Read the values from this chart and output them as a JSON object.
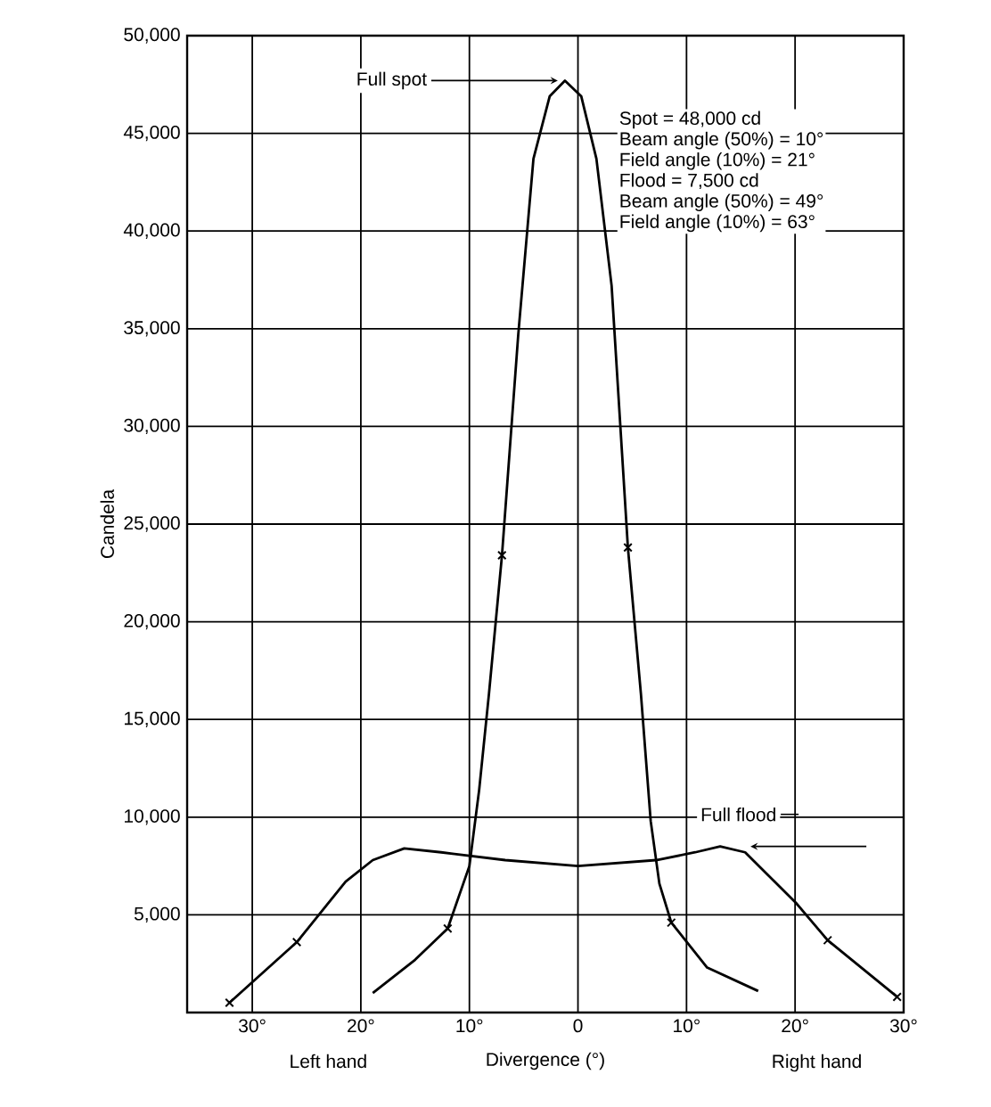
{
  "chart_data": {
    "type": "line",
    "xlabel": "Divergence (°)",
    "ylabel": "Candela",
    "xlim": [
      -36,
      30
    ],
    "ylim": [
      0,
      50000
    ],
    "xticks": [
      {
        "value": -30,
        "label": "30°"
      },
      {
        "value": -20,
        "label": "20°"
      },
      {
        "value": -10,
        "label": "10°"
      },
      0,
      {
        "value": 10,
        "label": "10°"
      },
      {
        "value": 20,
        "label": "20°"
      },
      {
        "value": 30,
        "label": "30°"
      }
    ],
    "yticks": [
      {
        "value": 5000,
        "label": "5,000"
      },
      {
        "value": 10000,
        "label": "10,000"
      },
      {
        "value": 15000,
        "label": "15,000"
      },
      {
        "value": 20000,
        "label": "20,000"
      },
      {
        "value": 25000,
        "label": "25,000"
      },
      {
        "value": 30000,
        "label": "30,000"
      },
      {
        "value": 35000,
        "label": "35,000"
      },
      {
        "value": 40000,
        "label": "40,000"
      },
      {
        "value": 45000,
        "label": "45,000"
      },
      {
        "value": 50000,
        "label": "50,000"
      }
    ],
    "grid": true,
    "line_style": "solid",
    "series": [
      {
        "color": "#000000",
        "marker": "none",
        "x": [
          -18.9,
          -15,
          -12,
          -10,
          -9.1,
          -8.2,
          -7,
          -5.5,
          -4.1,
          -2.6,
          -1.2,
          0.3,
          1.7,
          3.1,
          4.6,
          5.8,
          6.7,
          7.5,
          8.6,
          11.9,
          16.6
        ],
        "values": [
          1000,
          2700,
          4300,
          7500,
          11400,
          16300,
          23400,
          34700,
          43700,
          46900,
          47700,
          46900,
          43700,
          37200,
          23800,
          16300,
          9800,
          6600,
          4600,
          2300,
          1100
        ]
      },
      {
        "color": "#000000",
        "marker": "none",
        "x": [
          -32.1,
          -25.9,
          -21.4,
          -18.9,
          -16,
          -12.6,
          -6.7,
          0,
          7.2,
          10.8,
          13.1,
          15.4,
          20.1,
          23,
          29.4
        ],
        "values": [
          500,
          3600,
          6700,
          7800,
          8400,
          8200,
          7800,
          7500,
          7800,
          8200,
          8500,
          8200,
          5600,
          3700,
          800
        ]
      },
      {
        "type": "scatter",
        "color": "#000000",
        "marker": "cross",
        "x": [
          -12,
          -7,
          4.6,
          8.6,
          -25.9,
          23,
          -32.1,
          29.4
        ],
        "values": [
          4300,
          23400,
          23800,
          4600,
          3600,
          3700,
          500,
          800
        ]
      }
    ],
    "annotations": [
      {
        "text": "Full spot",
        "x": -1.2,
        "y": 47700
      },
      {
        "text": "Full flood",
        "x": 15.4,
        "y": 8500
      },
      "Spot = 48,000 cd",
      "Beam angle (50%) = 10°",
      "Field angle (10%) = 21°",
      "Flood = 7,500 cd",
      "Beam angle (50%) = 49°",
      "Field angle (10%) = 63°",
      "Left hand",
      "Right hand"
    ]
  }
}
